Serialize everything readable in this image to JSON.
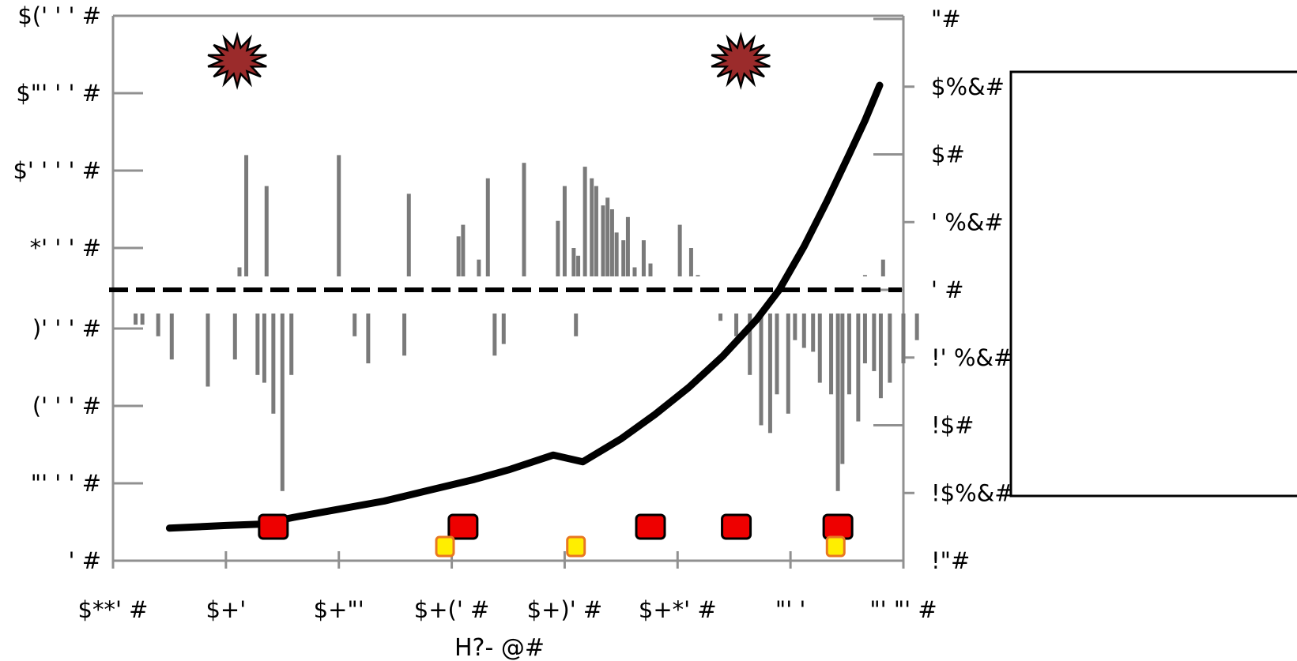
{
  "chart_data": {
    "type": "bar",
    "title": "",
    "xlabel": "H?- @#",
    "x_tick_labels": [
      "$**' #",
      "$+' ",
      "$+\"' ",
      "$+(' #",
      "$+)' #",
      "$+*' #",
      "\"' ' ",
      "\"' \"' #"
    ],
    "x_range": [
      1980,
      2015
    ],
    "left_axis_ticks_upper": [
      {
        "label": "*' ' ' #",
        "value": 8000
      },
      {
        "label": "$' ' ' ' #",
        "value": 10000
      },
      {
        "label": "$\"' ' ' #",
        "value": 12000
      },
      {
        "label": "$(' ' ' #",
        "value": 14000
      }
    ],
    "left_axis_ticks_lower": [
      {
        "label": "' #",
        "value": 0
      },
      {
        "label": "\"' ' ' #",
        "value": 2000
      },
      {
        "label": "(' ' ' #",
        "value": 4000
      },
      {
        "label": ")' ' ' #",
        "value": 6000
      }
    ],
    "right_axis_ticks": [
      {
        "label": "!\"#",
        "value": -2
      },
      {
        "label": "!$%&#",
        "value": -1.5
      },
      {
        "label": "!$#",
        "value": -1
      },
      {
        "label": "!' %&#",
        "value": -0.5
      },
      {
        "label": "' #",
        "value": 0
      },
      {
        "label": "' %&#",
        "value": 0.5
      },
      {
        "label": "$#",
        "value": 1
      },
      {
        "label": "$%&#",
        "value": 1.5
      },
      {
        "label": "\"#",
        "value": 2
      }
    ],
    "upper_bars": [
      {
        "x": 1981.3,
        "value": 6100
      },
      {
        "x": 1981.7,
        "value": 6500
      },
      {
        "x": 1983.1,
        "value": 6400
      },
      {
        "x": 1983.6,
        "value": 7000
      },
      {
        "x": 1984.8,
        "value": 6500
      },
      {
        "x": 1985.2,
        "value": 6900
      },
      {
        "x": 1985.6,
        "value": 7500
      },
      {
        "x": 1985.9,
        "value": 10400
      },
      {
        "x": 1986.6,
        "value": 6900
      },
      {
        "x": 1986.8,
        "value": 9600
      },
      {
        "x": 1987.5,
        "value": 6100
      },
      {
        "x": 1989.7,
        "value": 6900
      },
      {
        "x": 1990.0,
        "value": 10400
      },
      {
        "x": 1991.3,
        "value": 6200
      },
      {
        "x": 1992.1,
        "value": 6950
      },
      {
        "x": 1993.1,
        "value": 9400
      },
      {
        "x": 1993.3,
        "value": 6800
      },
      {
        "x": 1993.6,
        "value": 6600
      },
      {
        "x": 1993.8,
        "value": 6700
      },
      {
        "x": 1994.2,
        "value": 6800
      },
      {
        "x": 1994.6,
        "value": 6500
      },
      {
        "x": 1994.9,
        "value": 7200
      },
      {
        "x": 1995.3,
        "value": 8300
      },
      {
        "x": 1995.5,
        "value": 8600
      },
      {
        "x": 1996.2,
        "value": 7700
      },
      {
        "x": 1996.6,
        "value": 9800
      },
      {
        "x": 1997.4,
        "value": 6200
      },
      {
        "x": 1997.8,
        "value": 6100
      },
      {
        "x": 1998.2,
        "value": 10200
      },
      {
        "x": 1999.1,
        "value": 6700
      },
      {
        "x": 1999.3,
        "value": 6400
      },
      {
        "x": 1999.7,
        "value": 8700
      },
      {
        "x": 2000.0,
        "value": 9600
      },
      {
        "x": 2000.4,
        "value": 8000
      },
      {
        "x": 2000.6,
        "value": 7800
      },
      {
        "x": 2000.9,
        "value": 10100
      },
      {
        "x": 2001.2,
        "value": 9800
      },
      {
        "x": 2001.4,
        "value": 9600
      },
      {
        "x": 2001.7,
        "value": 9100
      },
      {
        "x": 2001.9,
        "value": 9300
      },
      {
        "x": 2002.1,
        "value": 9000
      },
      {
        "x": 2002.3,
        "value": 8400
      },
      {
        "x": 2002.6,
        "value": 8200
      },
      {
        "x": 2002.8,
        "value": 8800
      },
      {
        "x": 2003.1,
        "value": 7500
      },
      {
        "x": 2003.3,
        "value": 6900
      },
      {
        "x": 2003.5,
        "value": 8200
      },
      {
        "x": 2003.8,
        "value": 7600
      },
      {
        "x": 2004.2,
        "value": 6200
      },
      {
        "x": 2004.6,
        "value": 6200
      },
      {
        "x": 2005.1,
        "value": 8600
      },
      {
        "x": 2005.3,
        "value": 6300
      },
      {
        "x": 2005.6,
        "value": 8000
      },
      {
        "x": 2005.9,
        "value": 7300
      },
      {
        "x": 2006.1,
        "value": 6100
      },
      {
        "x": 2006.3,
        "value": 6200
      },
      {
        "x": 2006.7,
        "value": 6300
      },
      {
        "x": 2008.0,
        "value": 6600
      },
      {
        "x": 2013.3,
        "value": 7300
      },
      {
        "x": 2014.1,
        "value": 7700
      }
    ],
    "lower_bars": [
      {
        "x": 1981.0,
        "value": 6100
      },
      {
        "x": 1981.3,
        "value": 6100
      },
      {
        "x": 1982.0,
        "value": 5800
      },
      {
        "x": 1982.6,
        "value": 5200
      },
      {
        "x": 1984.2,
        "value": 4500
      },
      {
        "x": 1985.4,
        "value": 5200
      },
      {
        "x": 1986.4,
        "value": 4800
      },
      {
        "x": 1986.7,
        "value": 4600
      },
      {
        "x": 1987.1,
        "value": 3800
      },
      {
        "x": 1987.5,
        "value": 1800
      },
      {
        "x": 1987.9,
        "value": 4800
      },
      {
        "x": 1990.7,
        "value": 5800
      },
      {
        "x": 1991.3,
        "value": 5100
      },
      {
        "x": 1992.9,
        "value": 5300
      },
      {
        "x": 1996.9,
        "value": 5300
      },
      {
        "x": 1997.3,
        "value": 5600
      },
      {
        "x": 2000.5,
        "value": 5800
      },
      {
        "x": 2006.9,
        "value": 6200
      },
      {
        "x": 2007.6,
        "value": 5800
      },
      {
        "x": 2008.2,
        "value": 4800
      },
      {
        "x": 2008.7,
        "value": 3500
      },
      {
        "x": 2009.1,
        "value": 3300
      },
      {
        "x": 2009.4,
        "value": 4300
      },
      {
        "x": 2009.9,
        "value": 3800
      },
      {
        "x": 2010.2,
        "value": 5700
      },
      {
        "x": 2010.6,
        "value": 5500
      },
      {
        "x": 2011.0,
        "value": 5400
      },
      {
        "x": 2011.3,
        "value": 4600
      },
      {
        "x": 2011.8,
        "value": 4300
      },
      {
        "x": 2012.1,
        "value": 1800
      },
      {
        "x": 2012.3,
        "value": 2500
      },
      {
        "x": 2012.6,
        "value": 4300
      },
      {
        "x": 2013.0,
        "value": 3600
      },
      {
        "x": 2013.3,
        "value": 5100
      },
      {
        "x": 2013.7,
        "value": 4900
      },
      {
        "x": 2014.0,
        "value": 4200
      },
      {
        "x": 2014.4,
        "value": 4600
      },
      {
        "x": 2015.0,
        "value": 5100
      },
      {
        "x": 2015.6,
        "value": 5700
      }
    ],
    "line_series": {
      "axis": "right",
      "points": [
        [
          1982.5,
          -1.76
        ],
        [
          1985,
          -1.74
        ],
        [
          1986.5,
          -1.73
        ],
        [
          1988,
          -1.68
        ],
        [
          1990,
          -1.62
        ],
        [
          1992,
          -1.56
        ],
        [
          1994,
          -1.48
        ],
        [
          1996,
          -1.4
        ],
        [
          1997.5,
          -1.33
        ],
        [
          1999.5,
          -1.22
        ],
        [
          2000.8,
          -1.27
        ],
        [
          2002.5,
          -1.1
        ],
        [
          2004,
          -0.92
        ],
        [
          2005.5,
          -0.72
        ],
        [
          2007,
          -0.49
        ],
        [
          2008.5,
          -0.22
        ],
        [
          2009.5,
          0.0
        ],
        [
          2010.6,
          0.32
        ],
        [
          2011.6,
          0.65
        ],
        [
          2012.6,
          1.0
        ],
        [
          2013.3,
          1.25
        ],
        [
          2013.95,
          1.51
        ]
      ]
    },
    "reference_line": {
      "value": 0,
      "axis": "right",
      "style": "dashed"
    },
    "red_markers": [
      1987.1,
      1995.5,
      2003.8,
      2007.6,
      2012.1
    ],
    "yellow_markers": [
      1994.7,
      2000.5,
      2012.0
    ],
    "star_markers": [
      1985.5,
      2007.8
    ],
    "legend": {
      "box": "right",
      "entries": []
    },
    "colors": {
      "bars": "#7a7a7a",
      "line": "#000000",
      "red_marker": "#ee0000",
      "yellow_marker": "#ffee00",
      "yellow_border": "#e87722",
      "star": "#9b2b2b",
      "axis": "#909090"
    }
  }
}
